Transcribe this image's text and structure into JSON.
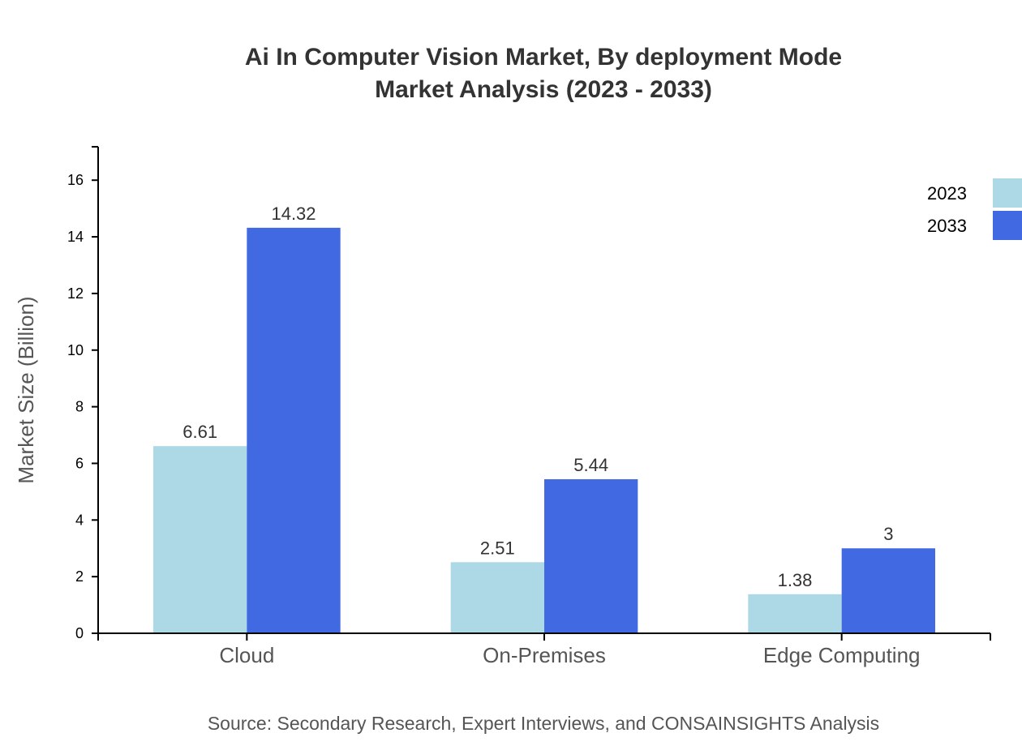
{
  "chart_data": {
    "type": "bar",
    "title": "Ai In Computer Vision Market, By deployment Mode",
    "subtitle": "Market Analysis (2023 - 2033)",
    "xlabel": "",
    "ylabel": "Market Size (Billion)",
    "categories": [
      "Cloud",
      "On-Premises",
      "Edge Computing"
    ],
    "series": [
      {
        "name": "2023",
        "values": [
          6.61,
          2.51,
          1.38
        ],
        "color": "#add8e6"
      },
      {
        "name": "2033",
        "values": [
          14.32,
          5.44,
          3
        ],
        "color": "#4169e1"
      }
    ],
    "ylim": [
      0,
      17.18
    ],
    "yticks": [
      0,
      2,
      4,
      6,
      8,
      10,
      12,
      14,
      16
    ],
    "grid": false,
    "legend": "top-right",
    "source": "Source: Secondary Research, Expert Interviews, and CONSAINSIGHTS Analysis"
  }
}
